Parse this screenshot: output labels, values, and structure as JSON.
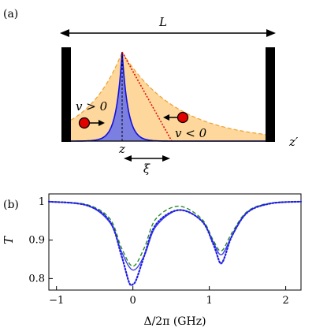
{
  "panel_a": {
    "label": "(a)",
    "length_label": "L",
    "pos_label": "z",
    "pos2_label": "z′",
    "width_label": "ξ",
    "atom_left_label": "v > 0",
    "atom_right_label": "v < 0",
    "colors": {
      "mirror": "#000000",
      "fill_orange": "#fdd79b",
      "envelope": "#f0a030",
      "peak_fill": "#7b7fe0",
      "peak_line": "#1010e0",
      "dotted": "#e01010",
      "atom": "#e00000"
    }
  },
  "panel_b": {
    "label": "(b)",
    "chart_data": {
      "type": "line",
      "xlabel": "Δ/2π (GHz)",
      "ylabel": "T",
      "xlim": [
        -1.1,
        2.2
      ],
      "ylim": [
        0.77,
        1.02
      ],
      "xticks": [
        -1,
        0,
        1,
        2
      ],
      "yticks": [
        0.8,
        0.9,
        1
      ],
      "series": [
        {
          "style": "dashed",
          "color": "#2a8a2a",
          "x": [
            -1.1,
            -0.6,
            -0.3,
            -0.15,
            0.0,
            0.15,
            0.3,
            0.6,
            0.9,
            1.05,
            1.16,
            1.3,
            1.5,
            1.8,
            2.2
          ],
          "y": [
            1.0,
            0.992,
            0.955,
            0.88,
            0.832,
            0.88,
            0.955,
            0.988,
            0.955,
            0.9,
            0.872,
            0.92,
            0.975,
            0.996,
            1.0
          ]
        },
        {
          "style": "solid",
          "color": "#4040e8",
          "x": [
            -1.1,
            -0.6,
            -0.3,
            -0.15,
            0.0,
            0.15,
            0.3,
            0.6,
            0.9,
            1.05,
            1.16,
            1.3,
            1.5,
            1.8,
            2.2
          ],
          "y": [
            1.0,
            0.99,
            0.945,
            0.87,
            0.822,
            0.86,
            0.935,
            0.978,
            0.95,
            0.895,
            0.862,
            0.912,
            0.972,
            0.995,
            1.0
          ]
        },
        {
          "style": "dotted",
          "color": "#2020e0",
          "x": [
            -1.1,
            -0.6,
            -0.3,
            -0.15,
            -0.05,
            0.0,
            0.05,
            0.15,
            0.3,
            0.6,
            0.9,
            1.05,
            1.13,
            1.16,
            1.2,
            1.3,
            1.5,
            1.8,
            2.2
          ],
          "y": [
            1.0,
            0.99,
            0.948,
            0.86,
            0.79,
            0.785,
            0.8,
            0.86,
            0.94,
            0.978,
            0.95,
            0.89,
            0.845,
            0.84,
            0.855,
            0.912,
            0.972,
            0.995,
            1.0
          ]
        }
      ]
    }
  }
}
